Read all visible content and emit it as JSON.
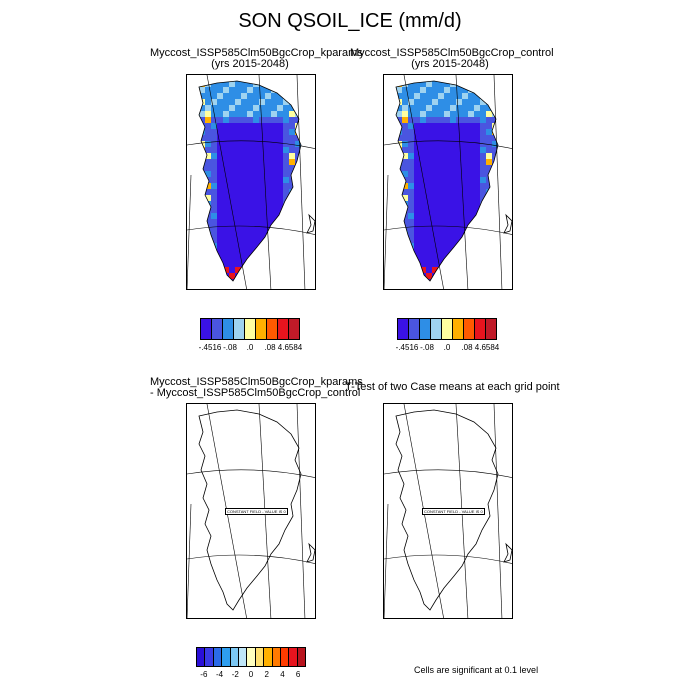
{
  "title": "SON QSOIL_ICE (mm/d)",
  "panels": [
    {
      "id": "p1",
      "title_line1": "Myccost_ISSP585Clm50BgcCrop_kparams",
      "title_line2": "(yrs 2015-2048)"
    },
    {
      "id": "p2",
      "title_line1": "Myccost_ISSP585Clm50BgcCrop_control",
      "title_line2": "(yrs 2015-2048)"
    },
    {
      "id": "p3",
      "title_line1": "Myccost_ISSP585Clm50BgcCrop_kparams",
      "title_line2": "- Myccost_ISSP585Clm50BgcCrop_control",
      "overlay_label": "CONSTANT FIELD - VALUE IS 0"
    },
    {
      "id": "p4",
      "title_line1": "T-Test of two Case means at each grid point",
      "title_line2": "",
      "overlay_label": "CONSTANT FIELD - VALUE IS 0"
    }
  ],
  "colorbar_top": {
    "colors": [
      "#3a12e6",
      "#4a55e0",
      "#2e8ee6",
      "#9fd3f0",
      "#ffffa0",
      "#ffb000",
      "#ff5a00",
      "#e8141e",
      "#c01a28"
    ],
    "labels": [
      "-.4516",
      "-.08",
      ".0",
      ".08",
      "4.6584"
    ]
  },
  "colorbar_bottom": {
    "colors": [
      "#2a0fd8",
      "#3a3ae6",
      "#2b6be8",
      "#2e9ef0",
      "#7cc8f4",
      "#bfe6f8",
      "#ffffc0",
      "#ffe070",
      "#ffb000",
      "#ff7a00",
      "#ff3c00",
      "#e8141e",
      "#b8141e"
    ],
    "labels": [
      "-6",
      "-4",
      "-2",
      "0",
      "2",
      "4",
      "6"
    ]
  },
  "note": "Cells are significant at 0.1 level"
}
